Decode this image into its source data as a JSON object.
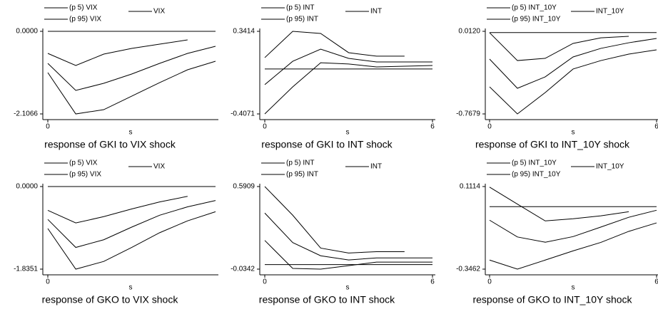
{
  "chart_data": [
    {
      "type": "line",
      "title": "response of GKI to VIX shock",
      "xlabel": "s",
      "x": [
        0,
        1,
        2,
        3,
        4,
        5,
        6
      ],
      "xlim": [
        0,
        6
      ],
      "xticks": [
        0
      ],
      "ylim": [
        -2.1066,
        0
      ],
      "yticks": [
        {
          "value": 0,
          "label": "0.0000"
        },
        -2.1066
      ],
      "yline": 0,
      "series": [
        {
          "name": "(p 5) VIX",
          "color": "#000000",
          "values": [
            -1.053,
            -2.107,
            -1.998,
            -1.653,
            -1.308,
            -0.981,
            -0.763
          ]
        },
        {
          "name": "VIX",
          "color": "#000000",
          "values": [
            -0.817,
            -1.507,
            -1.326,
            -1.09,
            -0.817,
            -0.563,
            -0.381
          ]
        },
        {
          "name": "(p 95) VIX",
          "color": "#000000",
          "values": [
            -0.563,
            -0.872,
            -0.581,
            -0.436,
            -0.327,
            -0.218,
            null
          ]
        }
      ]
    },
    {
      "type": "line",
      "title": "response of GKI to INT shock",
      "xlabel": "s",
      "x": [
        0,
        1,
        2,
        3,
        4,
        5,
        6
      ],
      "xlim": [
        0,
        6
      ],
      "xticks": [
        0,
        6
      ],
      "ylim": [
        -0.4071,
        0.3414
      ],
      "yticks": [
        0.3414,
        -0.4071
      ],
      "yline": 0,
      "series": [
        {
          "name": "(p 5) INT",
          "color": "#000000",
          "values": [
            -0.407,
            -0.162,
            0.057,
            0.045,
            0.019,
            0.025,
            0.032
          ]
        },
        {
          "name": "INT",
          "color": "#000000",
          "values": [
            -0.142,
            0.07,
            0.18,
            0.096,
            0.064,
            0.064,
            0.064
          ]
        },
        {
          "name": "(p 95) INT",
          "color": "#000000",
          "values": [
            0.103,
            0.341,
            0.322,
            0.148,
            0.116,
            0.116,
            null
          ]
        }
      ]
    },
    {
      "type": "line",
      "title": "response of GKI to INT_10Y shock",
      "xlabel": "s",
      "x": [
        0,
        1,
        2,
        3,
        4,
        5,
        6
      ],
      "xlim": [
        0,
        6
      ],
      "xticks": [
        0,
        6
      ],
      "ylim": [
        -0.7679,
        0.012
      ],
      "yticks": [
        {
          "value": 0.012,
          "label": "0.0120"
        },
        -0.7679
      ],
      "yline": 0,
      "series": [
        {
          "name": "(p 5) INT_10Y",
          "color": "#000000",
          "values": [
            -0.512,
            -0.768,
            -0.566,
            -0.344,
            -0.264,
            -0.203,
            -0.163
          ]
        },
        {
          "name": "INT_10Y",
          "color": "#000000",
          "values": [
            -0.25,
            -0.526,
            -0.418,
            -0.23,
            -0.149,
            -0.096,
            -0.055
          ]
        },
        {
          "name": "(p 95) INT_10Y",
          "color": "#000000",
          "values": [
            -0.001,
            -0.264,
            -0.243,
            -0.102,
            -0.049,
            -0.035,
            null
          ]
        }
      ]
    },
    {
      "type": "line",
      "title": "response of GKO to VIX shock",
      "xlabel": "s",
      "x": [
        0,
        1,
        2,
        3,
        4,
        5,
        6
      ],
      "xlim": [
        0,
        6
      ],
      "xticks": [
        0
      ],
      "ylim": [
        -1.8351,
        0
      ],
      "yticks": [
        {
          "value": 0,
          "label": "0.0000"
        },
        -1.8351
      ],
      "yline": 0,
      "series": [
        {
          "name": "(p 5) VIX",
          "color": "#000000",
          "values": [
            -0.933,
            -1.835,
            -1.664,
            -1.353,
            -1.026,
            -0.762,
            -0.56
          ]
        },
        {
          "name": "VIX",
          "color": "#000000",
          "values": [
            -0.731,
            -1.353,
            -1.182,
            -0.902,
            -0.638,
            -0.451,
            -0.311
          ]
        },
        {
          "name": "(p 95) VIX",
          "color": "#000000",
          "values": [
            -0.529,
            -0.809,
            -0.669,
            -0.498,
            -0.342,
            -0.218,
            null
          ]
        }
      ]
    },
    {
      "type": "line",
      "title": "response of GKO to INT shock",
      "xlabel": "s",
      "x": [
        0,
        1,
        2,
        3,
        4,
        5,
        6
      ],
      "xlim": [
        0,
        6
      ],
      "xticks": [
        0,
        6
      ],
      "ylim": [
        -0.0342,
        0.5909
      ],
      "yticks": [
        0.5909,
        -0.0342
      ],
      "yline": 0,
      "series": [
        {
          "name": "(p 5) INT",
          "color": "#000000",
          "values": [
            0.183,
            -0.029,
            -0.034,
            -0.008,
            0.019,
            0.019,
            0.019
          ]
        },
        {
          "name": "INT",
          "color": "#000000",
          "values": [
            0.39,
            0.167,
            0.067,
            0.035,
            0.051,
            0.051,
            0.051
          ]
        },
        {
          "name": "(p 95) INT",
          "color": "#000000",
          "values": [
            0.591,
            0.374,
            0.125,
            0.088,
            0.098,
            0.098,
            null
          ]
        }
      ]
    },
    {
      "type": "line",
      "title": "response of GKO to INT_10Y shock",
      "xlabel": "s",
      "x": [
        0,
        1,
        2,
        3,
        4,
        5,
        6
      ],
      "xlim": [
        0,
        6
      ],
      "xticks": [
        0,
        6
      ],
      "ylim": [
        -0.3462,
        0.1114
      ],
      "yticks": [
        0.1114,
        -0.3462
      ],
      "yline": 0,
      "series": [
        {
          "name": "(p 5) INT_10Y",
          "color": "#000000",
          "values": [
            -0.296,
            -0.346,
            -0.296,
            -0.245,
            -0.198,
            -0.137,
            -0.09
          ]
        },
        {
          "name": "INT_10Y",
          "color": "#000000",
          "values": [
            -0.075,
            -0.168,
            -0.197,
            -0.166,
            -0.113,
            -0.059,
            -0.02
          ]
        },
        {
          "name": "(p 95) INT_10Y",
          "color": "#000000",
          "values": [
            0.108,
            0.014,
            -0.079,
            -0.067,
            -0.051,
            -0.028,
            null
          ]
        }
      ]
    }
  ]
}
